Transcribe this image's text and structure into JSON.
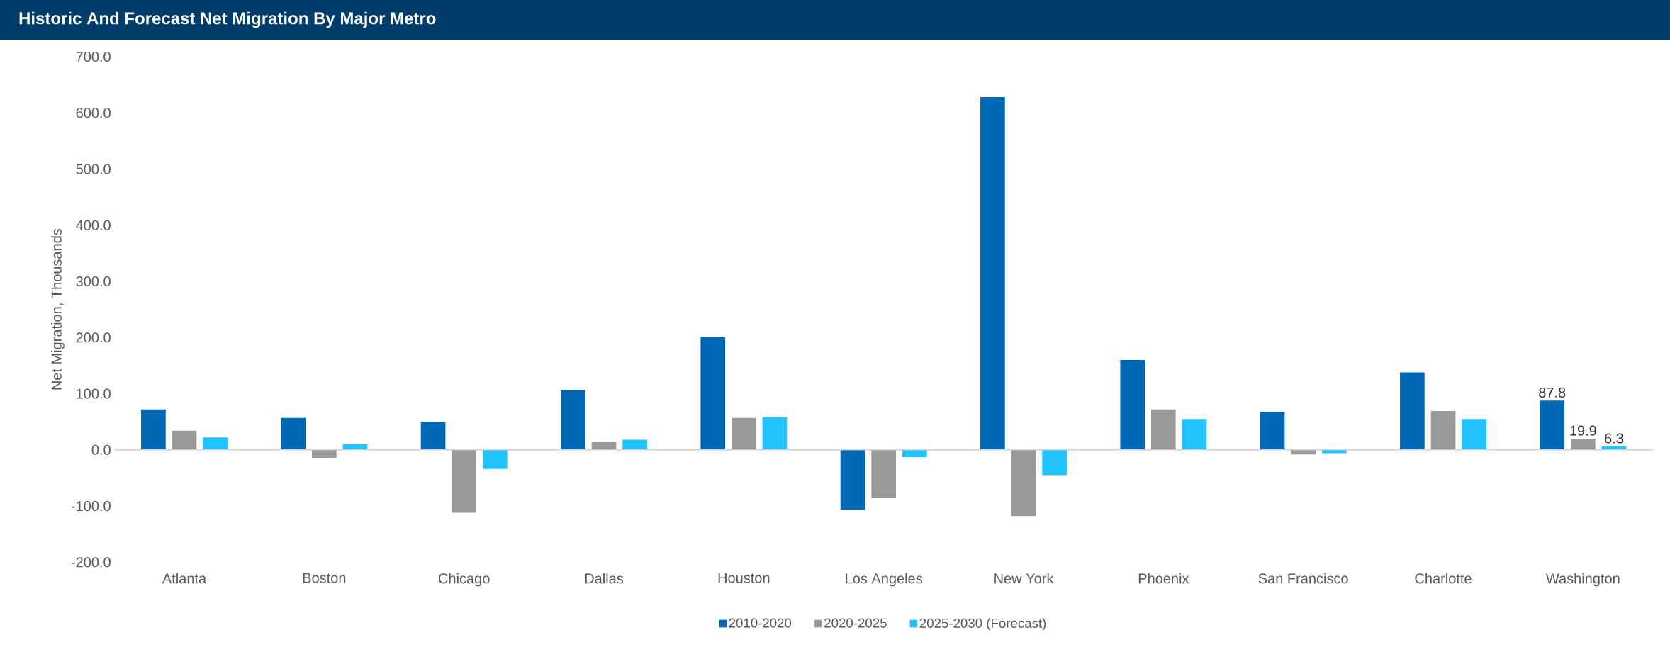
{
  "chart_data": {
    "type": "bar",
    "title": "Historic And Forecast Net Migration By Major Metro",
    "ylabel": "Net Migration, Thousands",
    "categories": [
      "Atlanta",
      "Boston",
      "Chicago",
      "Dallas",
      "Houston",
      "Los Angeles",
      "New York",
      "Phoenix",
      "San Francisco",
      "Charlotte",
      "Washington"
    ],
    "series": [
      {
        "name": "2010-2020",
        "color": "#0068b5",
        "values": [
          72,
          57,
          50,
          106,
          201,
          -107,
          628,
          160,
          68,
          138,
          87.8
        ],
        "value_labels": [
          null,
          null,
          null,
          null,
          null,
          null,
          null,
          null,
          null,
          null,
          "87.8"
        ]
      },
      {
        "name": "2020-2025",
        "color": "#999999",
        "values": [
          34,
          -14,
          -112,
          14,
          57,
          -86,
          -118,
          72,
          -8,
          69,
          19.9
        ],
        "value_labels": [
          null,
          null,
          null,
          null,
          null,
          null,
          null,
          null,
          null,
          null,
          "19.9"
        ]
      },
      {
        "name": "2025-2030 (Forecast)",
        "color": "#22c4ff",
        "values": [
          22,
          10,
          -34,
          18,
          58,
          -13,
          -45,
          55,
          -6,
          55,
          6.3
        ],
        "value_labels": [
          null,
          null,
          null,
          null,
          null,
          null,
          null,
          null,
          null,
          null,
          "6.3"
        ]
      }
    ],
    "ylim": [
      -200,
      700
    ],
    "yticks": [
      {
        "value": -200,
        "label": "-200.0"
      },
      {
        "value": -100,
        "label": "-100.0"
      },
      {
        "value": 0,
        "label": "0.0"
      },
      {
        "value": 100,
        "label": "100.0"
      },
      {
        "value": 200,
        "label": "200.0"
      },
      {
        "value": 300,
        "label": "300.0"
      },
      {
        "value": 400,
        "label": "400.0"
      },
      {
        "value": 500,
        "label": "500.0"
      },
      {
        "value": 600,
        "label": "600.0"
      },
      {
        "value": 700,
        "label": "700.0"
      }
    ],
    "legend": "bottom"
  }
}
